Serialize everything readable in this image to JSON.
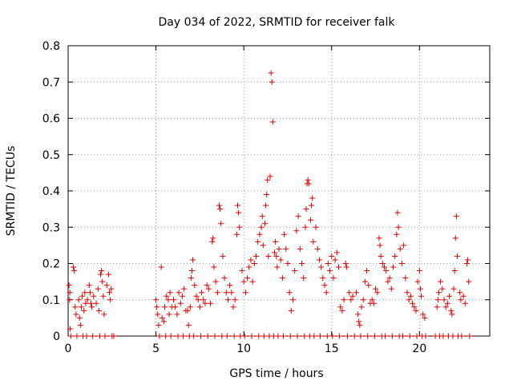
{
  "chart_data": {
    "type": "scatter",
    "title": "Day 034 of 2022, SRMTID for receiver falk",
    "xlabel": "GPS time / hours",
    "ylabel": "SRMTID / TECUs",
    "xlim": [
      0,
      24
    ],
    "ylim": [
      0,
      0.8
    ],
    "x_ticks": [
      0,
      5,
      10,
      15,
      20
    ],
    "x_tick_labels": [
      "0",
      "5",
      "10",
      "15",
      "20"
    ],
    "y_ticks": [
      0,
      0.1,
      0.2,
      0.3,
      0.4,
      0.5,
      0.6,
      0.7,
      0.8
    ],
    "y_tick_labels": [
      "0",
      "0.1",
      "0.2",
      "0.3",
      "0.4",
      "0.5",
      "0.6",
      "0.7",
      "0.8"
    ],
    "grid": true,
    "marker_color": "#dd0000",
    "series": [
      {
        "name": "SRMTID",
        "marker": "+",
        "points": [
          [
            0.05,
            0.14
          ],
          [
            0.08,
            0.1
          ],
          [
            0.1,
            0.12
          ],
          [
            0.12,
            0.02
          ],
          [
            0.15,
            0.0
          ],
          [
            0.3,
            0.19
          ],
          [
            0.35,
            0.18
          ],
          [
            0.4,
            0.08
          ],
          [
            0.45,
            0.06
          ],
          [
            0.5,
            0.0
          ],
          [
            0.6,
            0.1
          ],
          [
            0.65,
            0.05
          ],
          [
            0.7,
            0.03
          ],
          [
            0.75,
            0.08
          ],
          [
            0.8,
            0.11
          ],
          [
            0.85,
            0.0
          ],
          [
            0.9,
            0.07
          ],
          [
            0.95,
            0.12
          ],
          [
            1.0,
            0.09
          ],
          [
            1.05,
            0.0
          ],
          [
            1.1,
            0.1
          ],
          [
            1.2,
            0.14
          ],
          [
            1.25,
            0.12
          ],
          [
            1.3,
            0.09
          ],
          [
            1.35,
            0.08
          ],
          [
            1.4,
            0.0
          ],
          [
            1.45,
            0.11
          ],
          [
            1.6,
            0.09
          ],
          [
            1.7,
            0.13
          ],
          [
            1.75,
            0.07
          ],
          [
            1.8,
            0.0
          ],
          [
            1.85,
            0.17
          ],
          [
            1.9,
            0.18
          ],
          [
            1.95,
            0.15
          ],
          [
            2.0,
            0.11
          ],
          [
            2.05,
            0.06
          ],
          [
            2.1,
            0.0
          ],
          [
            2.2,
            0.14
          ],
          [
            2.3,
            0.17
          ],
          [
            2.35,
            0.12
          ],
          [
            2.4,
            0.1
          ],
          [
            2.45,
            0.13
          ],
          [
            2.5,
            0.0
          ],
          [
            2.6,
            0.0
          ],
          [
            5.0,
            0.1
          ],
          [
            5.05,
            0.08
          ],
          [
            5.1,
            0.06
          ],
          [
            5.15,
            0.03
          ],
          [
            5.2,
            0.0
          ],
          [
            5.3,
            0.19
          ],
          [
            5.35,
            0.05
          ],
          [
            5.45,
            0.04
          ],
          [
            5.5,
            0.08
          ],
          [
            5.55,
            0.0
          ],
          [
            5.6,
            0.11
          ],
          [
            5.7,
            0.1
          ],
          [
            5.75,
            0.06
          ],
          [
            5.8,
            0.12
          ],
          [
            5.85,
            0.0
          ],
          [
            5.9,
            0.08
          ],
          [
            6.0,
            0.1
          ],
          [
            6.1,
            0.08
          ],
          [
            6.2,
            0.06
          ],
          [
            6.25,
            0.0
          ],
          [
            6.3,
            0.12
          ],
          [
            6.4,
            0.09
          ],
          [
            6.5,
            0.11
          ],
          [
            6.55,
            0.0
          ],
          [
            6.6,
            0.13
          ],
          [
            6.7,
            0.07
          ],
          [
            6.8,
            0.07
          ],
          [
            6.85,
            0.03
          ],
          [
            6.9,
            0.0
          ],
          [
            6.95,
            0.08
          ],
          [
            7.0,
            0.16
          ],
          [
            7.05,
            0.18
          ],
          [
            7.1,
            0.21
          ],
          [
            7.15,
            0.0
          ],
          [
            7.2,
            0.14
          ],
          [
            7.3,
            0.11
          ],
          [
            7.4,
            0.1
          ],
          [
            7.5,
            0.08
          ],
          [
            7.55,
            0.0
          ],
          [
            7.6,
            0.12
          ],
          [
            7.7,
            0.1
          ],
          [
            7.8,
            0.09
          ],
          [
            7.9,
            0.14
          ],
          [
            7.95,
            0.0
          ],
          [
            8.0,
            0.13
          ],
          [
            8.1,
            0.09
          ],
          [
            8.2,
            0.26
          ],
          [
            8.25,
            0.27
          ],
          [
            8.3,
            0.19
          ],
          [
            8.35,
            0.0
          ],
          [
            8.4,
            0.15
          ],
          [
            8.5,
            0.12
          ],
          [
            8.6,
            0.36
          ],
          [
            8.65,
            0.35
          ],
          [
            8.7,
            0.31
          ],
          [
            8.75,
            0.0
          ],
          [
            8.8,
            0.22
          ],
          [
            8.9,
            0.16
          ],
          [
            9.0,
            0.12
          ],
          [
            9.05,
            0.0
          ],
          [
            9.1,
            0.1
          ],
          [
            9.2,
            0.14
          ],
          [
            9.3,
            0.12
          ],
          [
            9.4,
            0.08
          ],
          [
            9.45,
            0.0
          ],
          [
            9.5,
            0.1
          ],
          [
            9.6,
            0.28
          ],
          [
            9.65,
            0.36
          ],
          [
            9.7,
            0.34
          ],
          [
            9.75,
            0.3
          ],
          [
            9.8,
            0.0
          ],
          [
            9.9,
            0.18
          ],
          [
            10.0,
            0.15
          ],
          [
            10.05,
            0.0
          ],
          [
            10.1,
            0.12
          ],
          [
            10.2,
            0.16
          ],
          [
            10.3,
            0.19
          ],
          [
            10.4,
            0.21
          ],
          [
            10.45,
            0.0
          ],
          [
            10.5,
            0.15
          ],
          [
            10.6,
            0.2
          ],
          [
            10.7,
            0.22
          ],
          [
            10.8,
            0.26
          ],
          [
            10.85,
            0.0
          ],
          [
            10.9,
            0.28
          ],
          [
            11.0,
            0.3
          ],
          [
            11.05,
            0.33
          ],
          [
            11.1,
            0.25
          ],
          [
            11.15,
            0.0
          ],
          [
            11.2,
            0.31
          ],
          [
            11.25,
            0.36
          ],
          [
            11.3,
            0.39
          ],
          [
            11.35,
            0.43
          ],
          [
            11.4,
            0.22
          ],
          [
            11.45,
            0.0
          ],
          [
            11.5,
            0.44
          ],
          [
            11.55,
            0.725
          ],
          [
            11.6,
            0.7
          ],
          [
            11.65,
            0.59
          ],
          [
            11.7,
            0.0
          ],
          [
            11.75,
            0.23
          ],
          [
            11.8,
            0.26
          ],
          [
            11.85,
            0.22
          ],
          [
            11.9,
            0.19
          ],
          [
            11.95,
            0.0
          ],
          [
            12.0,
            0.24
          ],
          [
            12.1,
            0.21
          ],
          [
            12.2,
            0.16
          ],
          [
            12.25,
            0.0
          ],
          [
            12.3,
            0.28
          ],
          [
            12.4,
            0.24
          ],
          [
            12.5,
            0.2
          ],
          [
            12.6,
            0.12
          ],
          [
            12.65,
            0.0
          ],
          [
            12.7,
            0.07
          ],
          [
            12.8,
            0.1
          ],
          [
            12.9,
            0.18
          ],
          [
            13.0,
            0.29
          ],
          [
            13.05,
            0.0
          ],
          [
            13.1,
            0.33
          ],
          [
            13.2,
            0.24
          ],
          [
            13.3,
            0.2
          ],
          [
            13.4,
            0.16
          ],
          [
            13.45,
            0.0
          ],
          [
            13.5,
            0.3
          ],
          [
            13.55,
            0.35
          ],
          [
            13.6,
            0.42
          ],
          [
            13.65,
            0.43
          ],
          [
            13.7,
            0.42
          ],
          [
            13.75,
            0.0
          ],
          [
            13.8,
            0.32
          ],
          [
            13.85,
            0.36
          ],
          [
            13.9,
            0.38
          ],
          [
            13.95,
            0.26
          ],
          [
            14.0,
            0.0
          ],
          [
            14.1,
            0.3
          ],
          [
            14.2,
            0.24
          ],
          [
            14.3,
            0.21
          ],
          [
            14.35,
            0.0
          ],
          [
            14.4,
            0.19
          ],
          [
            14.5,
            0.16
          ],
          [
            14.6,
            0.14
          ],
          [
            14.7,
            0.12
          ],
          [
            14.75,
            0.0
          ],
          [
            14.8,
            0.2
          ],
          [
            14.9,
            0.18
          ],
          [
            15.0,
            0.22
          ],
          [
            15.05,
            0.0
          ],
          [
            15.1,
            0.16
          ],
          [
            15.2,
            0.21
          ],
          [
            15.3,
            0.23
          ],
          [
            15.4,
            0.19
          ],
          [
            15.45,
            0.0
          ],
          [
            15.5,
            0.08
          ],
          [
            15.6,
            0.07
          ],
          [
            15.7,
            0.1
          ],
          [
            15.8,
            0.2
          ],
          [
            15.85,
            0.19
          ],
          [
            15.9,
            0.0
          ],
          [
            16.0,
            0.12
          ],
          [
            16.1,
            0.1
          ],
          [
            16.2,
            0.11
          ],
          [
            16.3,
            0.0
          ],
          [
            16.4,
            0.12
          ],
          [
            16.5,
            0.06
          ],
          [
            16.55,
            0.04
          ],
          [
            16.6,
            0.03
          ],
          [
            16.65,
            0.0
          ],
          [
            16.7,
            0.08
          ],
          [
            16.8,
            0.1
          ],
          [
            16.9,
            0.15
          ],
          [
            17.0,
            0.18
          ],
          [
            17.05,
            0.0
          ],
          [
            17.1,
            0.14
          ],
          [
            17.2,
            0.09
          ],
          [
            17.3,
            0.1
          ],
          [
            17.4,
            0.09
          ],
          [
            17.45,
            0.0
          ],
          [
            17.5,
            0.13
          ],
          [
            17.6,
            0.12
          ],
          [
            17.7,
            0.27
          ],
          [
            17.75,
            0.25
          ],
          [
            17.8,
            0.22
          ],
          [
            17.85,
            0.0
          ],
          [
            17.9,
            0.2
          ],
          [
            18.0,
            0.19
          ],
          [
            18.05,
            0.0
          ],
          [
            18.1,
            0.18
          ],
          [
            18.2,
            0.15
          ],
          [
            18.3,
            0.16
          ],
          [
            18.4,
            0.13
          ],
          [
            18.45,
            0.0
          ],
          [
            18.5,
            0.19
          ],
          [
            18.6,
            0.22
          ],
          [
            18.7,
            0.28
          ],
          [
            18.75,
            0.34
          ],
          [
            18.8,
            0.3
          ],
          [
            18.85,
            0.0
          ],
          [
            18.9,
            0.24
          ],
          [
            19.0,
            0.2
          ],
          [
            19.05,
            0.0
          ],
          [
            19.1,
            0.25
          ],
          [
            19.2,
            0.16
          ],
          [
            19.3,
            0.12
          ],
          [
            19.4,
            0.1
          ],
          [
            19.45,
            0.0
          ],
          [
            19.5,
            0.11
          ],
          [
            19.6,
            0.09
          ],
          [
            19.7,
            0.08
          ],
          [
            19.8,
            0.07
          ],
          [
            19.85,
            0.0
          ],
          [
            19.9,
            0.15
          ],
          [
            20.0,
            0.18
          ],
          [
            20.05,
            0.13
          ],
          [
            20.1,
            0.11
          ],
          [
            20.15,
            0.0
          ],
          [
            20.2,
            0.06
          ],
          [
            20.3,
            0.05
          ],
          [
            20.35,
            0.0
          ],
          [
            20.9,
            0.0
          ],
          [
            21.0,
            0.08
          ],
          [
            21.05,
            0.1
          ],
          [
            21.1,
            0.12
          ],
          [
            21.15,
            0.0
          ],
          [
            21.2,
            0.15
          ],
          [
            21.3,
            0.13
          ],
          [
            21.35,
            0.0
          ],
          [
            21.4,
            0.1
          ],
          [
            21.5,
            0.08
          ],
          [
            21.6,
            0.09
          ],
          [
            21.65,
            0.0
          ],
          [
            21.7,
            0.11
          ],
          [
            21.8,
            0.07
          ],
          [
            21.85,
            0.06
          ],
          [
            21.9,
            0.0
          ],
          [
            21.95,
            0.13
          ],
          [
            22.0,
            0.18
          ],
          [
            22.05,
            0.27
          ],
          [
            22.1,
            0.33
          ],
          [
            22.15,
            0.22
          ],
          [
            22.2,
            0.0
          ],
          [
            22.3,
            0.12
          ],
          [
            22.35,
            0.1
          ],
          [
            22.4,
            0.0
          ],
          [
            22.5,
            0.11
          ],
          [
            22.6,
            0.09
          ],
          [
            22.7,
            0.2
          ],
          [
            22.75,
            0.21
          ],
          [
            22.8,
            0.15
          ],
          [
            22.85,
            0.0
          ]
        ]
      }
    ]
  }
}
